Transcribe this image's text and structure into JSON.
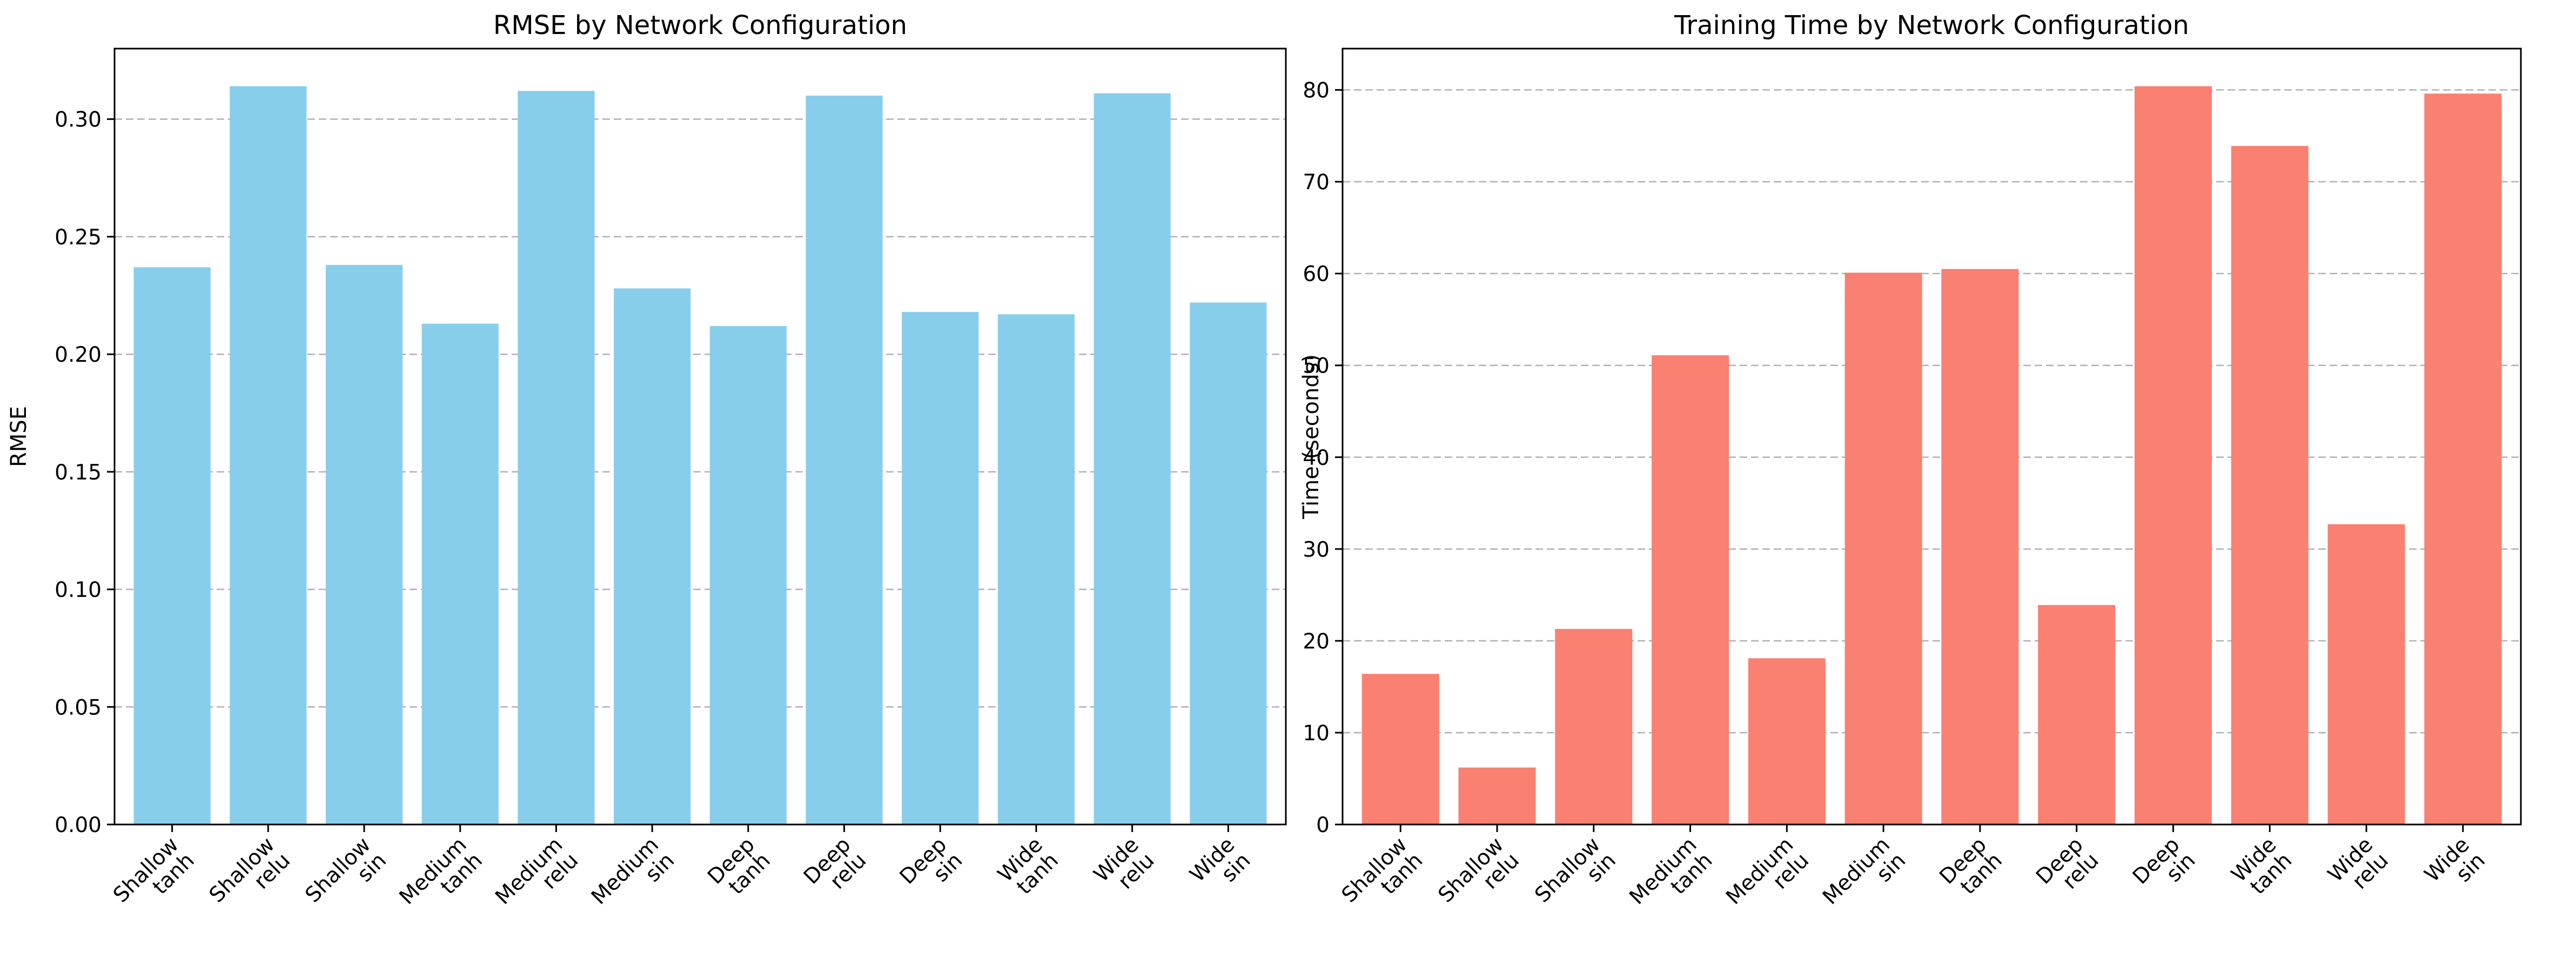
{
  "chart_data": [
    {
      "type": "bar",
      "title": "RMSE by Network Configuration",
      "xlabel": "",
      "ylabel": "RMSE",
      "categories": [
        "Shallow\ntanh",
        "Shallow\nrelu",
        "Shallow\nsin",
        "Medium\ntanh",
        "Medium\nrelu",
        "Medium\nsin",
        "Deep\ntanh",
        "Deep\nrelu",
        "Deep\nsin",
        "Wide\ntanh",
        "Wide\nrelu",
        "Wide\nsin"
      ],
      "values": [
        0.237,
        0.314,
        0.238,
        0.213,
        0.312,
        0.228,
        0.212,
        0.31,
        0.218,
        0.217,
        0.311,
        0.222
      ],
      "ylim": [
        0,
        0.33
      ],
      "yticks": [
        "0.00",
        "0.05",
        "0.10",
        "0.15",
        "0.20",
        "0.25",
        "0.30"
      ],
      "color": "#87ceeb",
      "grid": "y-dashed"
    },
    {
      "type": "bar",
      "title": "Training Time by Network Configuration",
      "xlabel": "",
      "ylabel": "Time (seconds)",
      "categories": [
        "Shallow\ntanh",
        "Shallow\nrelu",
        "Shallow\nsin",
        "Medium\ntanh",
        "Medium\nrelu",
        "Medium\nsin",
        "Deep\ntanh",
        "Deep\nrelu",
        "Deep\nsin",
        "Wide\ntanh",
        "Wide\nrelu",
        "Wide\nsin"
      ],
      "values": [
        16.4,
        6.2,
        21.3,
        51.1,
        18.1,
        60.1,
        60.5,
        23.9,
        80.4,
        73.9,
        32.7,
        79.6
      ],
      "ylim": [
        0,
        84.5
      ],
      "yticks": [
        "0",
        "10",
        "20",
        "30",
        "40",
        "50",
        "60",
        "70",
        "80"
      ],
      "color": "#fa8072",
      "grid": "y-dashed"
    }
  ]
}
